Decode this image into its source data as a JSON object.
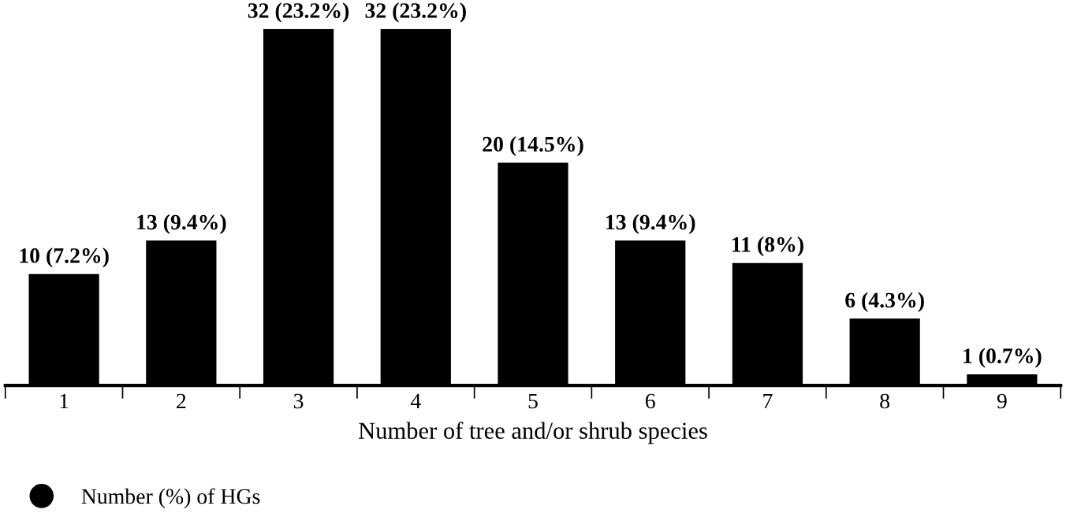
{
  "chart_data": {
    "type": "bar",
    "xlabel": "Number of tree and/or shrub species",
    "categories": [
      "1",
      "2",
      "3",
      "4",
      "5",
      "6",
      "7",
      "8",
      "9"
    ],
    "series": [
      {
        "name": "Number (%) of HGs",
        "color": "#000000",
        "values": [
          10,
          13,
          32,
          32,
          20,
          13,
          11,
          6,
          1
        ],
        "value_labels": [
          "10 (7.2%)",
          "13 (9.4%)",
          "32 (23.2%)",
          "32 (23.2%)",
          "20 (14.5%)",
          "13 (9.4%)",
          "11 (8%)",
          "6 (4.3%)",
          "1 (0.7%)"
        ]
      }
    ],
    "ylim": [
      0,
      32
    ],
    "tick_labels": "x",
    "grid": false,
    "legend": "bottom left",
    "marker": "circle"
  }
}
